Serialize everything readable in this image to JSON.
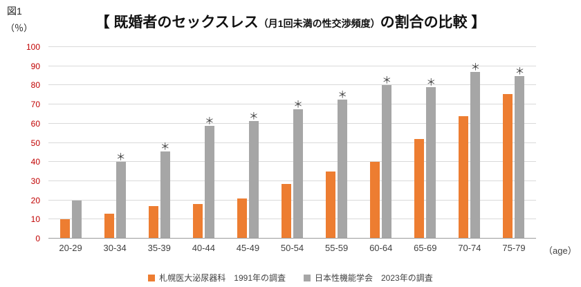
{
  "figure_label": "図1",
  "y_unit_label": "（％）",
  "x_unit_label": "（age）",
  "title": {
    "part1": "【 既婚者のセックスレス",
    "part2": "（月1回未満の性交渉頻度）",
    "part3": "の割合の比較 】"
  },
  "colors": {
    "series1": "#ED7D31",
    "series2": "#A6A6A6",
    "y_tick_label": "#c00000",
    "grid": "#d9d9d9"
  },
  "legend": [
    {
      "label": "札幌医大泌尿器科　1991年の調査",
      "color": "#ED7D31"
    },
    {
      "label": "日本性機能学会　2023年の調査",
      "color": "#A6A6A6"
    }
  ],
  "chart_data": {
    "type": "bar",
    "title": "【 既婚者のセックスレス（月1回未満の性交渉頻度）の割合の比較 】",
    "xlabel": "(age)",
    "ylabel": "(%)",
    "categories": [
      "20-29",
      "30-34",
      "35-39",
      "40-44",
      "45-49",
      "50-54",
      "55-59",
      "60-64",
      "65-69",
      "70-74",
      "75-79"
    ],
    "series": [
      {
        "name": "札幌医大泌尿器科 1991年の調査",
        "color": "#ED7D31",
        "values": [
          10,
          13,
          17,
          18,
          21,
          28.5,
          35,
          40,
          52,
          64,
          75.5
        ]
      },
      {
        "name": "日本性機能学会 2023年の調査",
        "color": "#A6A6A6",
        "values": [
          20,
          40,
          45.5,
          59,
          61.5,
          67.5,
          72.5,
          80,
          79,
          87,
          85
        ]
      }
    ],
    "significance_marks": [
      false,
      true,
      true,
      true,
      true,
      true,
      true,
      true,
      true,
      true,
      true
    ],
    "significance_symbol": "＊",
    "ylim": [
      0,
      100
    ],
    "ytick_interval": 10,
    "grid": true,
    "legend_position": "bottom"
  }
}
